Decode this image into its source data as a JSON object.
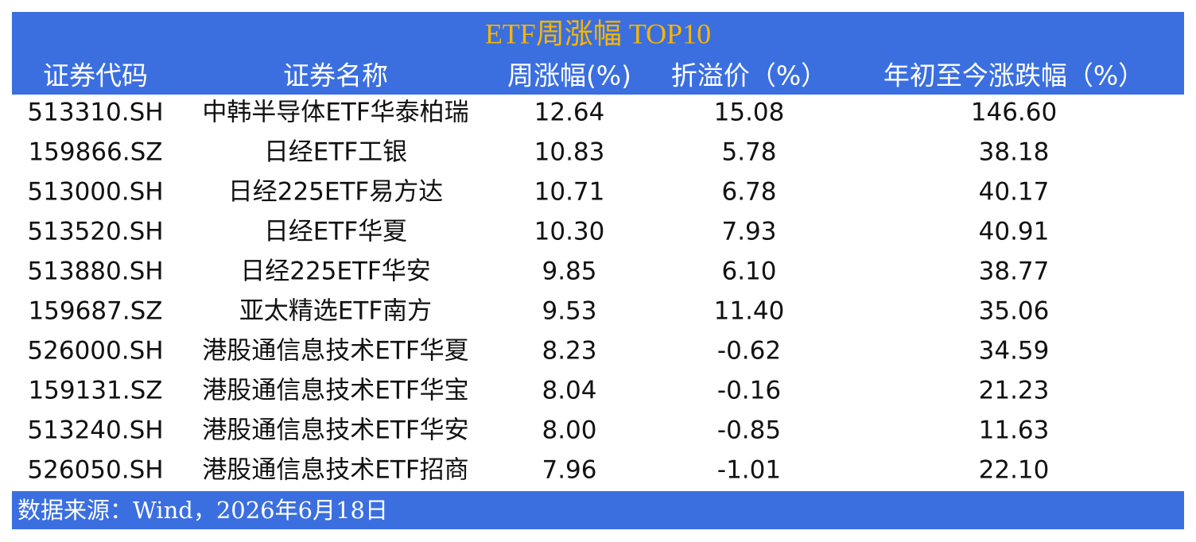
{
  "header": {
    "title": "ETF周涨幅 TOP10"
  },
  "table": {
    "columns": [
      "证券代码",
      "证券名称",
      "周涨幅(%)",
      "折溢价（%）",
      "年初至今涨跌幅（%）"
    ],
    "rows": [
      [
        "513310.SH",
        "中韩半导体ETF华泰柏瑞",
        "12.64",
        "15.08",
        "146.60"
      ],
      [
        "159866.SZ",
        "日经ETF工银",
        "10.83",
        "5.78",
        "38.18"
      ],
      [
        "513000.SH",
        "日经225ETF易方达",
        "10.71",
        "6.78",
        "40.17"
      ],
      [
        "513520.SH",
        "日经ETF华夏",
        "10.30",
        "7.93",
        "40.91"
      ],
      [
        "513880.SH",
        "日经225ETF华安",
        "9.85",
        "6.10",
        "38.77"
      ],
      [
        "159687.SZ",
        "亚太精选ETF南方",
        "9.53",
        "11.40",
        "35.06"
      ],
      [
        "526000.SH",
        "港股通信息技术ETF华夏",
        "8.23",
        "-0.62",
        "34.59"
      ],
      [
        "159131.SZ",
        "港股通信息技术ETF华宝",
        "8.04",
        "-0.16",
        "21.23"
      ],
      [
        "513240.SH",
        "港股通信息技术ETF华安",
        "8.00",
        "-0.85",
        "11.63"
      ],
      [
        "526050.SH",
        "港股通信息技术ETF招商",
        "7.96",
        "-1.01",
        "22.10"
      ]
    ]
  },
  "footer": {
    "source": "数据来源：Wind，2026年6月18日"
  }
}
